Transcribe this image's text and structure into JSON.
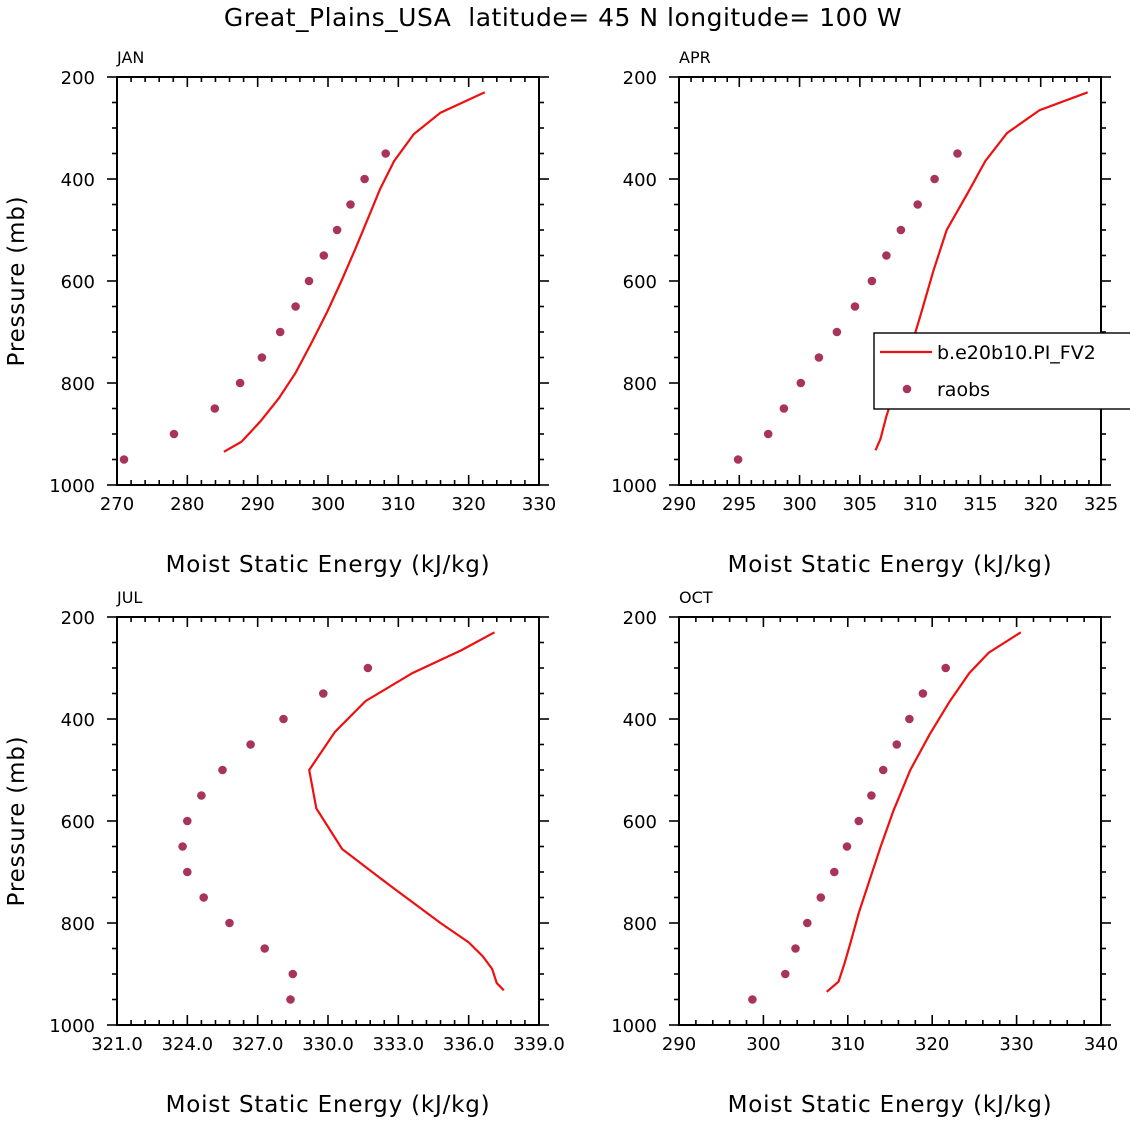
{
  "figure_title": "Great_Plains_USA  latitude= 45 N longitude= 100 W",
  "colors": {
    "model": "#ee1010",
    "obs": "#a8345c"
  },
  "chart_data": [
    {
      "type": "line",
      "panel": "JAN",
      "xlabel": "Moist Static Energy (kJ/kg)",
      "ylabel": "Pressure (mb)",
      "xlim": [
        270,
        330
      ],
      "ylim": [
        200,
        1000
      ],
      "xticks": [
        270,
        280,
        290,
        300,
        310,
        320,
        330
      ],
      "xtick_labels": [
        "270",
        "280",
        "290",
        "300",
        "310",
        "320",
        "330"
      ],
      "yticks": [
        200,
        400,
        600,
        800,
        1000
      ],
      "ytick_labels": [
        "200",
        "400",
        "600",
        "800",
        "1000"
      ],
      "grid": false,
      "legend": null,
      "series": [
        {
          "name": "b.e20b10.PI_FV2",
          "style": "line",
          "x": [
            322.3,
            316.0,
            312.2,
            309.4,
            307.4,
            305.6,
            303.8,
            301.9,
            299.9,
            297.7,
            295.4,
            293.0,
            290.4,
            287.7,
            285.2
          ],
          "y": [
            230,
            270,
            312,
            365,
            420,
            480,
            540,
            600,
            660,
            720,
            780,
            830,
            875,
            915,
            935
          ]
        },
        {
          "name": "raobs",
          "style": "markers",
          "x": [
            308.2,
            305.2,
            303.2,
            301.3,
            299.4,
            297.3,
            295.4,
            293.2,
            290.6,
            287.5,
            283.9,
            278.1,
            271.0
          ],
          "y": [
            350,
            400,
            450,
            500,
            550,
            600,
            650,
            700,
            750,
            800,
            850,
            900,
            950
          ]
        }
      ]
    },
    {
      "type": "line",
      "panel": "APR",
      "xlabel": "Moist Static Energy (kJ/kg)",
      "ylabel": "",
      "xlim": [
        290,
        325
      ],
      "ylim": [
        200,
        1000
      ],
      "xticks": [
        290,
        295,
        300,
        305,
        310,
        315,
        320,
        325
      ],
      "xtick_labels": [
        "290",
        "295",
        "300",
        "305",
        "310",
        "315",
        "320",
        "325"
      ],
      "yticks": [
        200,
        400,
        600,
        800,
        1000
      ],
      "ytick_labels": [
        "200",
        "400",
        "600",
        "800",
        "1000"
      ],
      "grid": false,
      "legend": "right",
      "series": [
        {
          "name": "b.e20b10.PI_FV2",
          "style": "line",
          "x": [
            323.9,
            319.9,
            317.2,
            315.4,
            314.0,
            312.2,
            311.1,
            310.0,
            309.1,
            308.1,
            307.2,
            306.7,
            306.3
          ],
          "y": [
            230,
            265,
            310,
            365,
            425,
            500,
            580,
            670,
            740,
            800,
            865,
            910,
            932
          ]
        },
        {
          "name": "raobs",
          "style": "markers",
          "x": [
            313.1,
            311.2,
            309.8,
            308.4,
            307.2,
            306.0,
            304.6,
            303.1,
            301.6,
            300.1,
            298.7,
            297.4,
            294.9
          ],
          "y": [
            350,
            400,
            450,
            500,
            550,
            600,
            650,
            700,
            750,
            800,
            850,
            900,
            950
          ]
        }
      ]
    },
    {
      "type": "line",
      "panel": "JUL",
      "xlabel": "Moist Static Energy (kJ/kg)",
      "ylabel": "Pressure (mb)",
      "xlim": [
        321,
        339
      ],
      "ylim": [
        200,
        1000
      ],
      "xticks": [
        321,
        324,
        327,
        330,
        333,
        336,
        339
      ],
      "xtick_labels": [
        "321.0",
        "324.0",
        "327.0",
        "330.0",
        "333.0",
        "336.0",
        "339.0"
      ],
      "yticks": [
        200,
        400,
        600,
        800,
        1000
      ],
      "ytick_labels": [
        "200",
        "400",
        "600",
        "800",
        "1000"
      ],
      "grid": false,
      "legend": null,
      "series": [
        {
          "name": "b.e20b10.PI_FV2",
          "style": "line",
          "x": [
            337.1,
            335.7,
            333.6,
            331.6,
            330.3,
            329.2,
            329.5,
            330.6,
            332.6,
            334.8,
            336.0,
            336.6,
            337.0,
            337.2,
            337.5
          ],
          "y": [
            230,
            265,
            310,
            365,
            425,
            500,
            575,
            655,
            725,
            800,
            838,
            865,
            890,
            918,
            932
          ]
        },
        {
          "name": "raobs",
          "style": "markers",
          "x": [
            331.7,
            329.8,
            328.1,
            326.7,
            325.5,
            324.6,
            324.0,
            323.8,
            324.0,
            324.7,
            325.8,
            327.3,
            328.5,
            328.4
          ],
          "y": [
            300,
            350,
            400,
            450,
            500,
            550,
            600,
            650,
            700,
            750,
            800,
            850,
            900,
            950
          ]
        }
      ]
    },
    {
      "type": "line",
      "panel": "OCT",
      "xlabel": "Moist Static Energy (kJ/kg)",
      "ylabel": "",
      "xlim": [
        290,
        340
      ],
      "ylim": [
        200,
        1000
      ],
      "xticks": [
        290,
        300,
        310,
        320,
        330,
        340
      ],
      "xtick_labels": [
        "290",
        "300",
        "310",
        "320",
        "330",
        "340"
      ],
      "yticks": [
        200,
        400,
        600,
        800,
        1000
      ],
      "ytick_labels": [
        "200",
        "400",
        "600",
        "800",
        "1000"
      ],
      "grid": false,
      "legend": null,
      "series": [
        {
          "name": "b.e20b10.PI_FV2",
          "style": "line",
          "x": [
            330.5,
            326.7,
            324.4,
            322.1,
            319.7,
            317.4,
            315.4,
            313.9,
            312.5,
            311.3,
            310.3,
            309.6,
            308.9,
            307.5
          ],
          "y": [
            230,
            270,
            310,
            365,
            430,
            500,
            580,
            650,
            720,
            780,
            840,
            880,
            915,
            935
          ]
        },
        {
          "name": "raobs",
          "style": "markers",
          "x": [
            321.6,
            318.9,
            317.3,
            315.8,
            314.2,
            312.8,
            311.3,
            309.9,
            308.4,
            306.8,
            305.2,
            303.8,
            302.6,
            298.7
          ],
          "y": [
            300,
            350,
            400,
            450,
            500,
            550,
            600,
            650,
            700,
            750,
            800,
            850,
            900,
            950
          ]
        }
      ]
    }
  ]
}
